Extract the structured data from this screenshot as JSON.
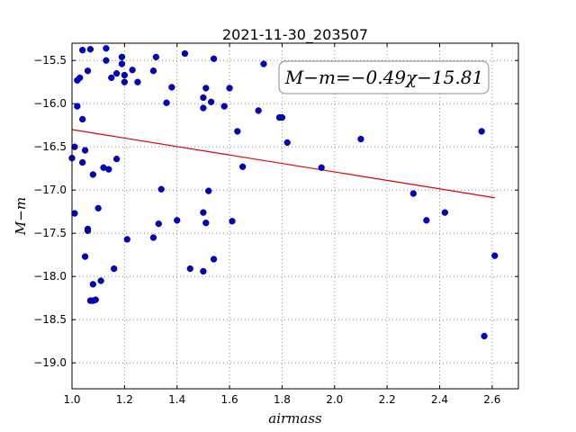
{
  "chart_data": {
    "type": "scatter",
    "title": "2021-11-30_203507",
    "xlabel": "airmass",
    "ylabel": "M−m",
    "xlim": [
      1.0,
      2.7
    ],
    "ylim": [
      -15.3,
      -19.3
    ],
    "y_inverted": true,
    "grid": true,
    "x_ticks": [
      1.0,
      1.2,
      1.4,
      1.6,
      1.8,
      2.0,
      2.2,
      2.4,
      2.6
    ],
    "x_tick_labels": [
      "1.0",
      "1.2",
      "1.4",
      "1.6",
      "1.8",
      "2.0",
      "2.2",
      "2.4",
      "2.6"
    ],
    "y_ticks": [
      -15.5,
      -16.0,
      -16.5,
      -17.0,
      -17.5,
      -18.0,
      -18.5,
      -19.0
    ],
    "y_tick_labels": [
      "−15.5",
      "−16.0",
      "−16.5",
      "−17.0",
      "−17.5",
      "−18.0",
      "−18.5",
      "−19.0"
    ],
    "annotation": "M−m=−0.49χ−15.81",
    "annotation_placement": "top-right",
    "point_color": "#0000cc",
    "fit_color": "#dd0000",
    "fit_line": {
      "slope": -0.49,
      "intercept": -15.81,
      "x_range": [
        1.0,
        2.61
      ]
    },
    "points": [
      [
        1.0,
        -16.63
      ],
      [
        1.01,
        -16.5
      ],
      [
        1.01,
        -17.27
      ],
      [
        1.02,
        -16.03
      ],
      [
        1.02,
        -15.73
      ],
      [
        1.03,
        -15.7
      ],
      [
        1.04,
        -16.68
      ],
      [
        1.04,
        -15.38
      ],
      [
        1.04,
        -16.18
      ],
      [
        1.05,
        -16.54
      ],
      [
        1.05,
        -17.77
      ],
      [
        1.06,
        -17.45
      ],
      [
        1.06,
        -17.47
      ],
      [
        1.06,
        -15.62
      ],
      [
        1.07,
        -15.37
      ],
      [
        1.07,
        -18.28
      ],
      [
        1.08,
        -18.09
      ],
      [
        1.08,
        -18.28
      ],
      [
        1.08,
        -16.82
      ],
      [
        1.09,
        -18.27
      ],
      [
        1.1,
        -17.21
      ],
      [
        1.11,
        -18.05
      ],
      [
        1.12,
        -16.74
      ],
      [
        1.13,
        -15.36
      ],
      [
        1.13,
        -15.5
      ],
      [
        1.14,
        -16.76
      ],
      [
        1.15,
        -15.7
      ],
      [
        1.16,
        -17.91
      ],
      [
        1.17,
        -16.64
      ],
      [
        1.17,
        -15.65
      ],
      [
        1.19,
        -15.54
      ],
      [
        1.19,
        -15.46
      ],
      [
        1.2,
        -15.75
      ],
      [
        1.2,
        -15.67
      ],
      [
        1.21,
        -17.57
      ],
      [
        1.23,
        -15.61
      ],
      [
        1.25,
        -15.75
      ],
      [
        1.31,
        -17.55
      ],
      [
        1.31,
        -15.62
      ],
      [
        1.32,
        -15.46
      ],
      [
        1.33,
        -17.39
      ],
      [
        1.34,
        -16.99
      ],
      [
        1.36,
        -15.99
      ],
      [
        1.38,
        -15.81
      ],
      [
        1.4,
        -17.35
      ],
      [
        1.43,
        -15.42
      ],
      [
        1.45,
        -17.91
      ],
      [
        1.5,
        -15.93
      ],
      [
        1.5,
        -16.05
      ],
      [
        1.5,
        -17.26
      ],
      [
        1.5,
        -17.94
      ],
      [
        1.51,
        -15.82
      ],
      [
        1.51,
        -17.38
      ],
      [
        1.52,
        -17.01
      ],
      [
        1.53,
        -15.98
      ],
      [
        1.54,
        -15.48
      ],
      [
        1.54,
        -17.8
      ],
      [
        1.58,
        -16.03
      ],
      [
        1.6,
        -15.82
      ],
      [
        1.61,
        -17.36
      ],
      [
        1.63,
        -16.32
      ],
      [
        1.65,
        -16.73
      ],
      [
        1.71,
        -16.08
      ],
      [
        1.73,
        -15.54
      ],
      [
        1.79,
        -16.16
      ],
      [
        1.8,
        -16.16
      ],
      [
        1.82,
        -16.45
      ],
      [
        1.95,
        -16.74
      ],
      [
        2.1,
        -16.41
      ],
      [
        2.3,
        -17.04
      ],
      [
        2.35,
        -17.35
      ],
      [
        2.42,
        -17.26
      ],
      [
        2.56,
        -16.32
      ],
      [
        2.57,
        -18.69
      ],
      [
        2.61,
        -17.76
      ]
    ]
  }
}
